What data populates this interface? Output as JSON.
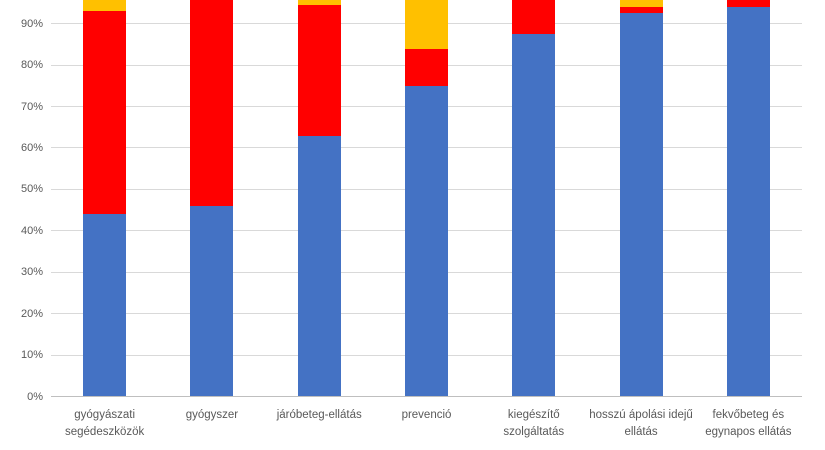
{
  "chart_data": {
    "type": "bar",
    "stacked": "percent",
    "title": "",
    "xlabel": "",
    "ylabel": "",
    "ylim": [
      0,
      100
    ],
    "grid": true,
    "legend_position": "none-visible",
    "visible_note": "chart is cropped at top (~96%); bar tops and 100% tick not visible",
    "categories": [
      "gyógyászati segédeszközök",
      "gyógyszer",
      "járóbeteg-ellátás",
      "prevenció",
      "kiegészítő szolgáltatás",
      "hosszú ápolási idejű ellátás",
      "fekvőbeteg és egynapos ellátás"
    ],
    "series": [
      {
        "name": "blue",
        "color": "#4472c4",
        "values": [
          44,
          46,
          63,
          75,
          87.5,
          92.5,
          94
        ]
      },
      {
        "name": "red",
        "color": "#ff0000",
        "values": [
          49,
          54,
          31.5,
          9,
          12.5,
          1.5,
          6
        ]
      },
      {
        "name": "yellow",
        "color": "#ffc000",
        "values": [
          7,
          0,
          5.5,
          16,
          0,
          6,
          0
        ]
      }
    ],
    "yticks": [
      {
        "value": 0,
        "label": "0%"
      },
      {
        "value": 10,
        "label": "10%"
      },
      {
        "value": 20,
        "label": "20%"
      },
      {
        "value": 30,
        "label": "30%"
      },
      {
        "value": 40,
        "label": "40%"
      },
      {
        "value": 50,
        "label": "50%"
      },
      {
        "value": 60,
        "label": "60%"
      },
      {
        "value": 70,
        "label": "70%"
      },
      {
        "value": 80,
        "label": "80%"
      },
      {
        "value": 90,
        "label": "90%"
      }
    ]
  },
  "style": {
    "background": "#ffffff",
    "grid_color": "#d9d9d9",
    "axis_color": "#bfbfbf",
    "label_color": "#595959"
  }
}
